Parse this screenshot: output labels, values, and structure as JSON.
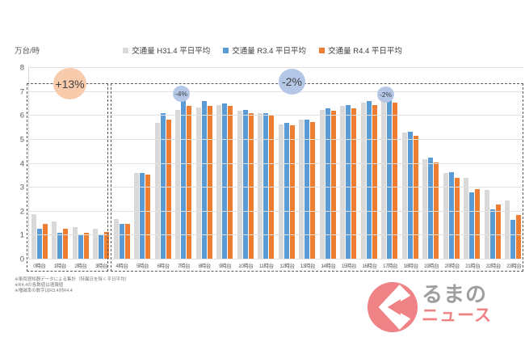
{
  "chart_data": {
    "type": "bar",
    "title": "",
    "ylabel_unit": "万台/時",
    "ylim": [
      0,
      8
    ],
    "yticks": [
      0,
      1,
      2,
      3,
      4,
      5,
      6,
      7,
      8
    ],
    "grid": true,
    "legend_position": "top",
    "categories": [
      "0時台",
      "1時台",
      "2時台",
      "3時台",
      "4時台",
      "5時台",
      "6時台",
      "7時台",
      "8時台",
      "9時台",
      "10時台",
      "11時台",
      "12時台",
      "13時台",
      "14時台",
      "15時台",
      "16時台",
      "17時台",
      "18時台",
      "19時台",
      "20時台",
      "21時台",
      "22時台",
      "23時台"
    ],
    "series": [
      {
        "name": "交通量 H31.4 平日平均",
        "color": "#d9d9d9",
        "values": [
          1.9,
          1.6,
          1.35,
          1.3,
          1.7,
          3.6,
          5.7,
          6.25,
          6.35,
          6.45,
          6.2,
          6.1,
          5.65,
          5.85,
          6.25,
          6.4,
          6.55,
          6.7,
          5.3,
          4.2,
          3.6,
          3.4,
          2.9,
          2.45
        ]
      },
      {
        "name": "交通量 R3.4 平日平均",
        "color": "#5b9bd5",
        "values": [
          1.3,
          1.1,
          1.0,
          1.05,
          1.5,
          3.6,
          6.1,
          6.65,
          6.6,
          6.5,
          6.25,
          6.1,
          5.7,
          5.85,
          6.3,
          6.45,
          6.6,
          6.75,
          5.35,
          4.25,
          3.65,
          2.8,
          2.1,
          1.65
        ]
      },
      {
        "name": "交通量 R4.4 平日平均",
        "color": "#ed7d31",
        "values": [
          1.5,
          1.3,
          1.1,
          1.15,
          1.5,
          3.55,
          5.85,
          6.4,
          6.4,
          6.4,
          6.1,
          6.0,
          5.6,
          5.75,
          6.2,
          6.3,
          6.45,
          6.55,
          5.15,
          4.05,
          3.4,
          2.95,
          2.3,
          1.85
        ]
      }
    ],
    "annotations": [
      {
        "label": "+13%",
        "applies_to": "0時台〜3時台",
        "bubble_color": "#f8cbad",
        "size": "large"
      },
      {
        "label": "-4%",
        "applies_to": "7時台",
        "bubble_color": "#b4c7e7",
        "size": "small"
      },
      {
        "label": "-2%",
        "applies_to": "4時台〜23時台",
        "bubble_color": "#b4c7e7",
        "size": "large"
      },
      {
        "label": "-2%",
        "applies_to": "17時台",
        "bubble_color": "#b4c7e7",
        "size": "small"
      }
    ],
    "group_boxes": [
      "0時台〜3時台",
      "4時台〜23時台"
    ]
  },
  "footnotes": [
    "※車両感知器データによる集計（特異日を除く平日平均）",
    "※R4.4の各数値は速報値",
    "※増減率の数字はR3.4対R4.4"
  ],
  "logo": {
    "name": "くるまのニュース",
    "mark_glyph": "く",
    "text_gray": "るまの",
    "text_red": "ニュース",
    "brand_color": "#ef8285",
    "gray_color": "#9e9e9e"
  }
}
